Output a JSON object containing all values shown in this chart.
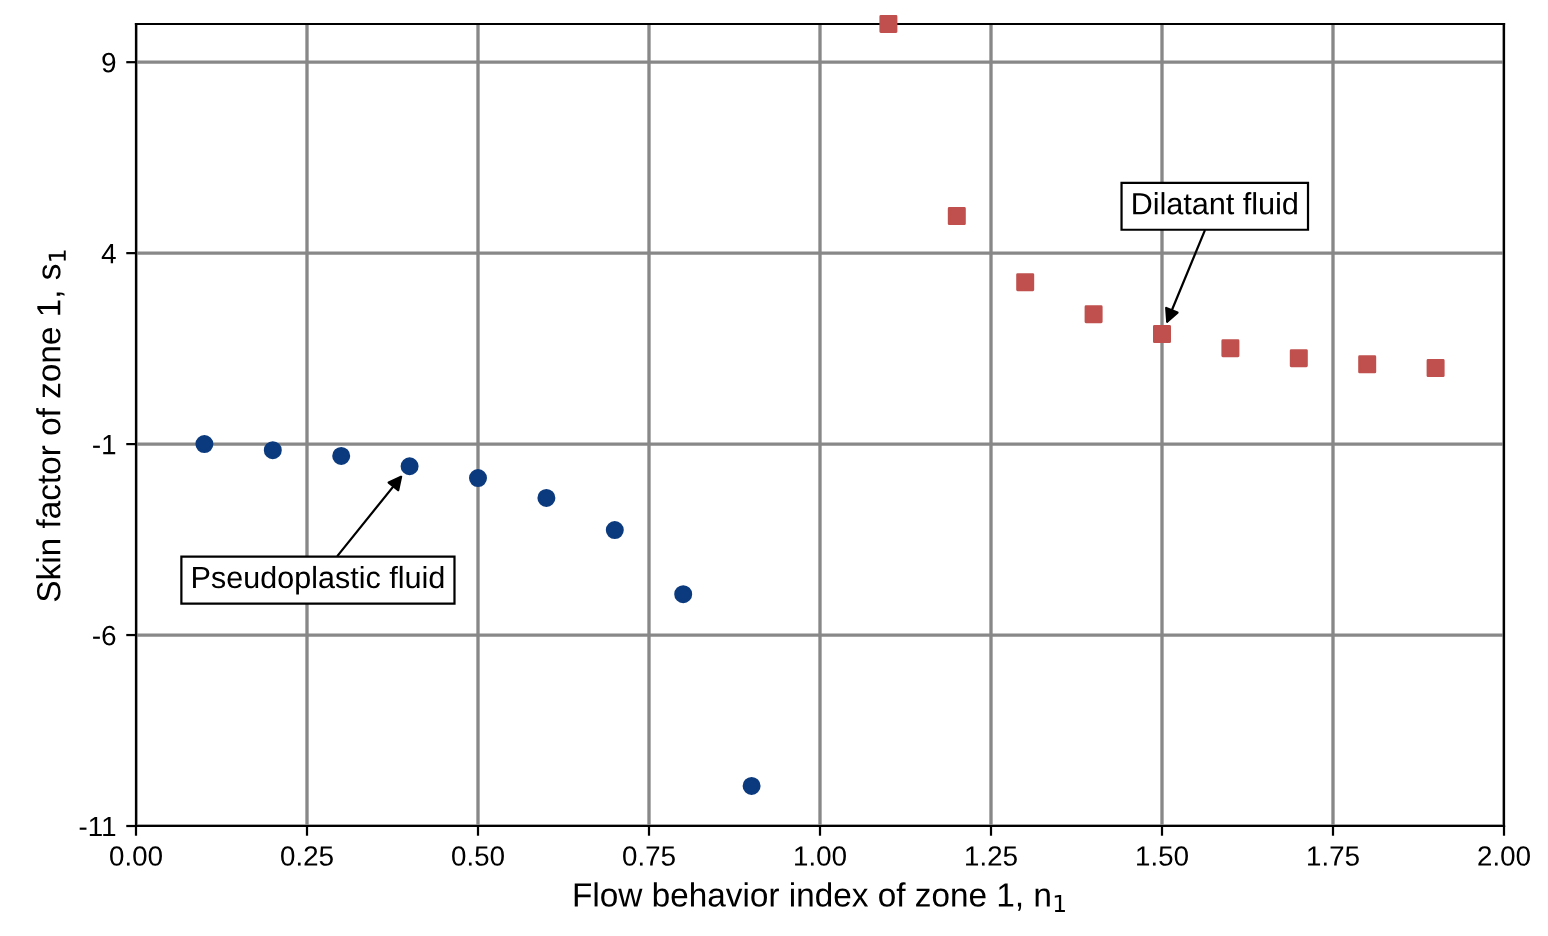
{
  "chart_data": {
    "type": "scatter",
    "xlabel": "Flow behavior index of zone 1, n$_{1}$",
    "ylabel": "Skin factor of zone 1, s$_{1}$",
    "xlim": [
      0,
      2
    ],
    "ylim": [
      -11,
      10
    ],
    "xticks": [
      {
        "value": 0,
        "label": "0.00"
      },
      0.25,
      {
        "value": 0.5,
        "label": "0.50"
      },
      0.75,
      {
        "value": 1,
        "label": "1.00"
      },
      1.25,
      {
        "value": 1.5,
        "label": "1.50"
      },
      1.75,
      {
        "value": 2,
        "label": "2.00"
      }
    ],
    "yticks": [
      -11,
      -6,
      -1,
      4,
      9
    ],
    "grid": true,
    "series": [
      {
        "marker": "circle",
        "color": "#0b3a7e",
        "x": [
          0.1,
          0.2,
          0.3,
          0.4,
          0.5,
          0.6,
          0.7,
          0.8,
          0.9
        ],
        "values": [
          -1.0,
          -1.16,
          -1.31,
          -1.58,
          -1.89,
          -2.41,
          -3.25,
          -4.93,
          -9.95
        ]
      },
      {
        "marker": "square",
        "color": "#c0504d",
        "x": [
          1.1,
          1.2,
          1.3,
          1.4,
          1.5,
          1.6,
          1.7,
          1.8,
          1.9
        ],
        "values": [
          10.0,
          4.97,
          3.24,
          2.4,
          1.88,
          1.51,
          1.25,
          1.09,
          0.99
        ]
      }
    ],
    "annotations": [
      {
        "text": "Pseudoplastic fluid",
        "x": 0.4,
        "y": -1.58
      },
      {
        "text": "Dilatant fluid",
        "x": 1.5,
        "y": 1.88
      }
    ]
  }
}
